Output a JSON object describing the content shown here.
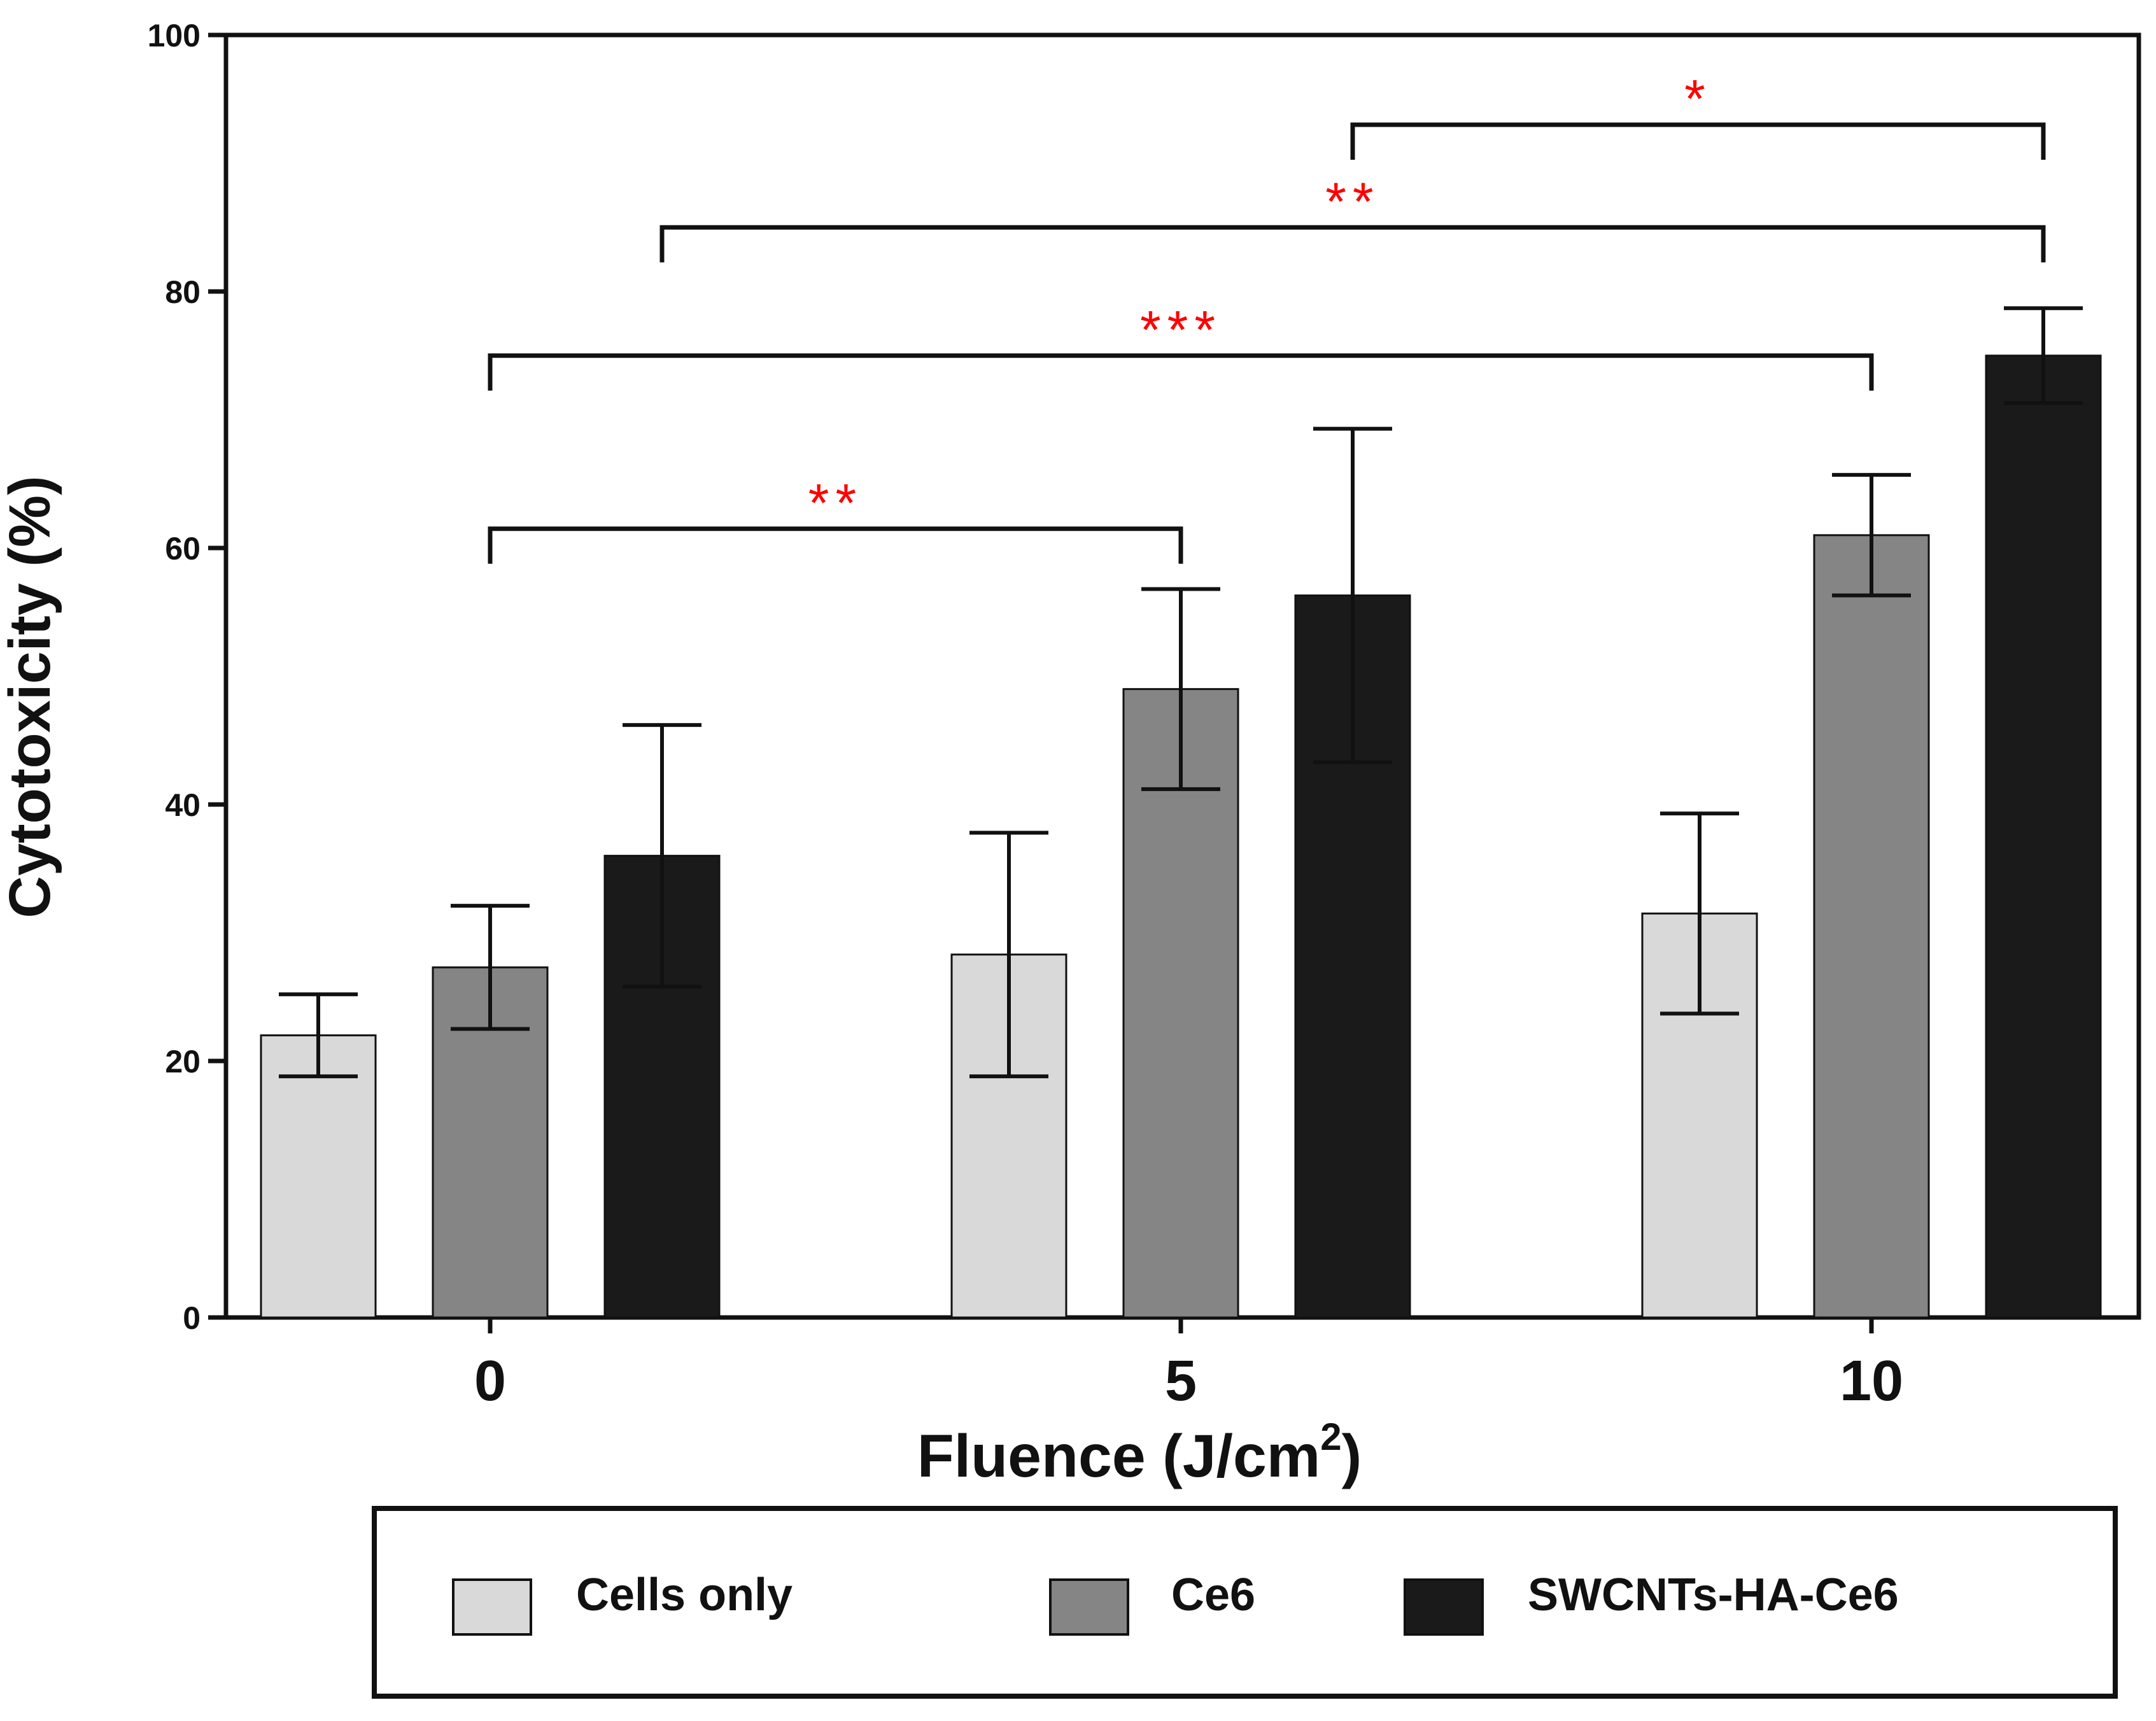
{
  "chart_data": {
    "type": "bar",
    "title": "",
    "xlabel": "Fluence (J/cm",
    "xlabel_superscript": "2",
    "xlabel_suffix": ")",
    "ylabel": "Cytotoxicity (%)",
    "ylim": [
      0,
      100
    ],
    "yticks": [
      "0",
      "20",
      "40",
      "60",
      "80",
      "100"
    ],
    "categories": [
      "0",
      "5",
      "10"
    ],
    "series": [
      {
        "name": "Cells only",
        "color": "#d9d9d9",
        "values": [
          22,
          28.3,
          31.5
        ],
        "errors": [
          3.2,
          9.5,
          7.8
        ]
      },
      {
        "name": "Ce6",
        "color": "#858585",
        "values": [
          27.3,
          49,
          61
        ],
        "errors": [
          4.8,
          7.8,
          4.7
        ]
      },
      {
        "name": "SWCNTs-HA-Ce6",
        "color": "#1a1a1a",
        "values": [
          36,
          56.3,
          75
        ],
        "errors": [
          10.2,
          13,
          3.7
        ]
      }
    ],
    "significance": [
      {
        "label": "**",
        "from": {
          "group": 0,
          "series": 1
        },
        "to": {
          "group": 1,
          "series": 1
        },
        "level": 61.5
      },
      {
        "label": "***",
        "from": {
          "group": 0,
          "series": 1
        },
        "to": {
          "group": 2,
          "series": 1
        },
        "level": 75
      },
      {
        "label": "**",
        "from": {
          "group": 0,
          "series": 2
        },
        "to": {
          "group": 2,
          "series": 2
        },
        "level": 85
      },
      {
        "label": "*",
        "from": {
          "group": 1,
          "series": 2
        },
        "to": {
          "group": 2,
          "series": 2
        },
        "level": 93
      }
    ],
    "legend": {
      "position": "bottom",
      "items": [
        "Cells only",
        "Ce6",
        "SWCNTs-HA-Ce6"
      ]
    }
  }
}
